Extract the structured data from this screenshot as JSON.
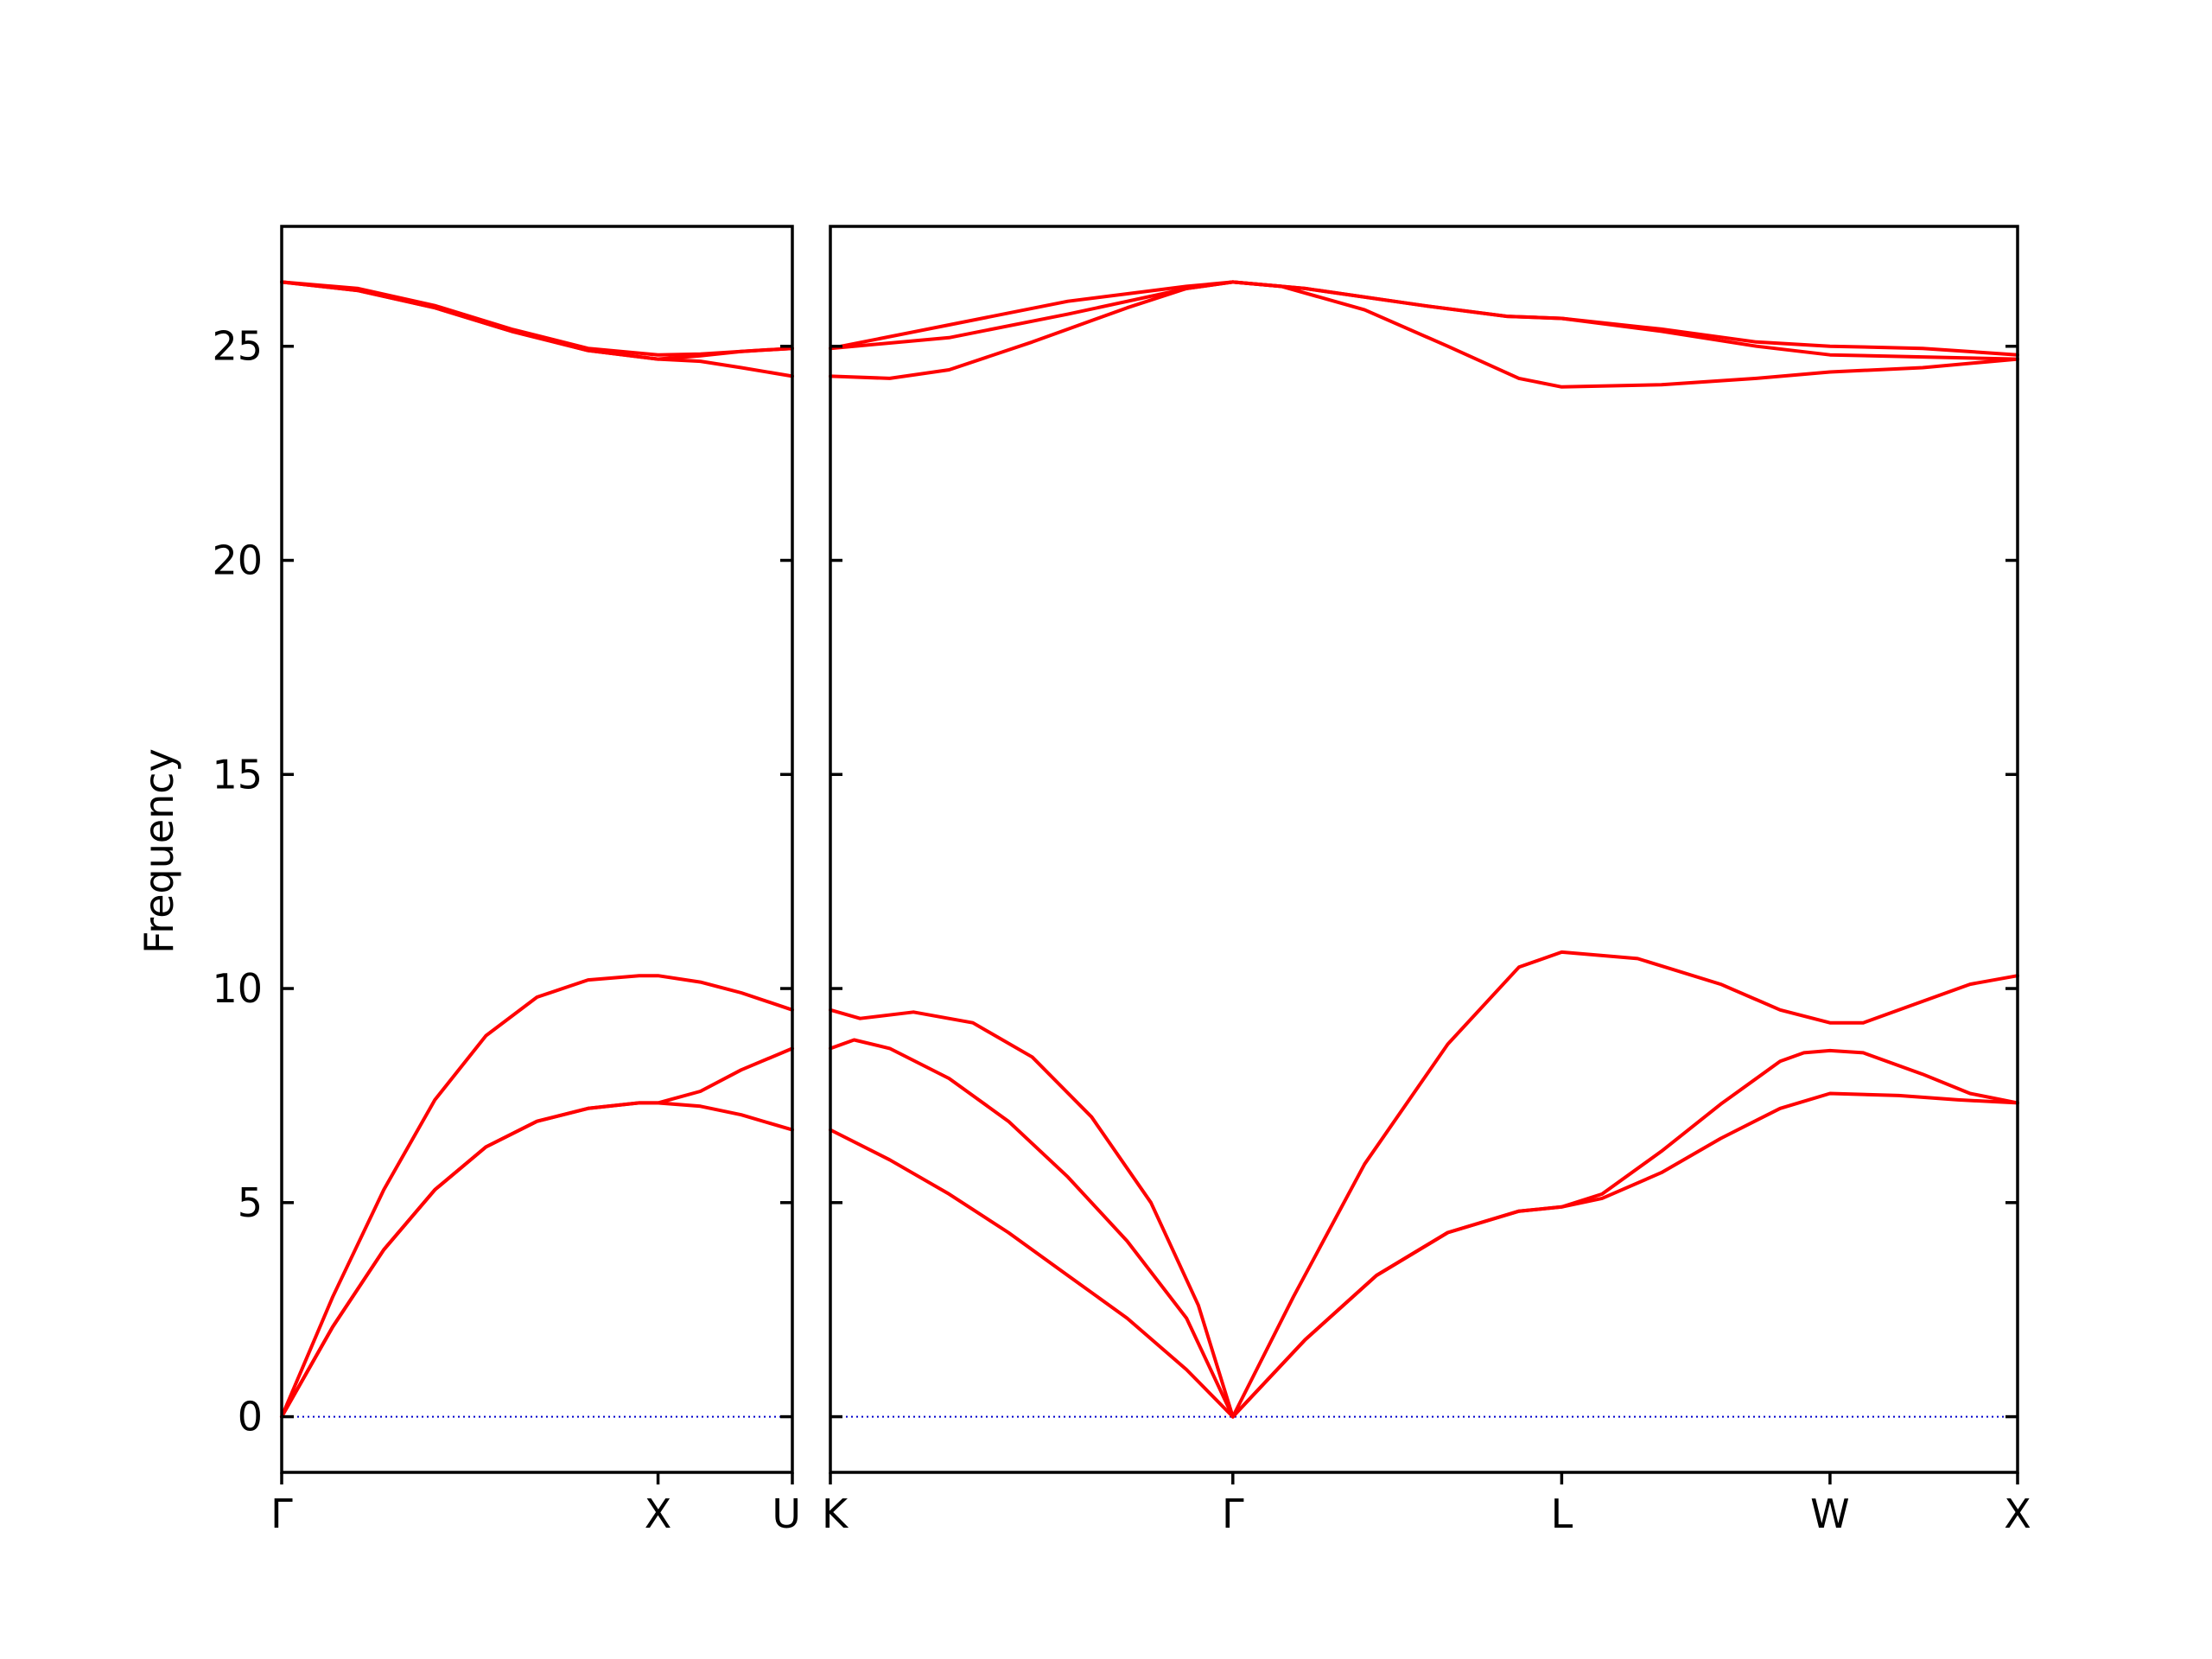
{
  "chart_data": {
    "type": "line",
    "ylabel": "Frequency",
    "ylim": [
      -1.3,
      27.8
    ],
    "yticks": [
      0,
      5,
      10,
      15,
      20,
      25
    ],
    "band_color": "#ff0000",
    "zero_line_color": "#0000cc",
    "panels": [
      {
        "xlim": [
          0,
          1
        ],
        "ticks": [
          {
            "x": 0,
            "label": "Γ"
          },
          {
            "x": 0.737,
            "label": "X"
          },
          {
            "x": 1,
            "label": "U"
          }
        ],
        "series": [
          {
            "points": [
              [
                0,
                0
              ],
              [
                0.1,
                2.8
              ],
              [
                0.2,
                5.3
              ],
              [
                0.3,
                7.4
              ],
              [
                0.4,
                8.9
              ],
              [
                0.5,
                9.8
              ],
              [
                0.6,
                10.2
              ],
              [
                0.7,
                10.3
              ],
              [
                0.737,
                10.3
              ],
              [
                0.82,
                10.15
              ],
              [
                0.9,
                9.9
              ],
              [
                1,
                9.5
              ]
            ]
          },
          {
            "points": [
              [
                0,
                0
              ],
              [
                0.1,
                2.1
              ],
              [
                0.2,
                3.9
              ],
              [
                0.3,
                5.3
              ],
              [
                0.4,
                6.3
              ],
              [
                0.5,
                6.9
              ],
              [
                0.6,
                7.2
              ],
              [
                0.7,
                7.33
              ],
              [
                0.737,
                7.33
              ],
              [
                0.82,
                7.6
              ],
              [
                0.9,
                8.1
              ],
              [
                1,
                8.6
              ]
            ]
          },
          {
            "points": [
              [
                0,
                0
              ],
              [
                0.1,
                2.1
              ],
              [
                0.2,
                3.9
              ],
              [
                0.3,
                5.3
              ],
              [
                0.4,
                6.3
              ],
              [
                0.5,
                6.9
              ],
              [
                0.6,
                7.2
              ],
              [
                0.7,
                7.33
              ],
              [
                0.737,
                7.33
              ],
              [
                0.82,
                7.25
              ],
              [
                0.9,
                7.05
              ],
              [
                1,
                6.7
              ]
            ]
          },
          {
            "points": [
              [
                0,
                26.5
              ],
              [
                0.15,
                26.35
              ],
              [
                0.3,
                25.95
              ],
              [
                0.45,
                25.4
              ],
              [
                0.6,
                24.95
              ],
              [
                0.737,
                24.8
              ],
              [
                0.82,
                24.82
              ],
              [
                0.9,
                24.88
              ],
              [
                1,
                24.95
              ]
            ]
          },
          {
            "points": [
              [
                0,
                26.5
              ],
              [
                0.15,
                26.3
              ],
              [
                0.3,
                25.9
              ],
              [
                0.45,
                25.35
              ],
              [
                0.6,
                24.9
              ],
              [
                0.737,
                24.7
              ],
              [
                0.82,
                24.65
              ],
              [
                0.9,
                24.5
              ],
              [
                1,
                24.3
              ]
            ]
          },
          {
            "points": [
              [
                0,
                26.5
              ],
              [
                0.15,
                26.3
              ],
              [
                0.3,
                25.9
              ],
              [
                0.45,
                25.35
              ],
              [
                0.6,
                24.9
              ],
              [
                0.737,
                24.7
              ],
              [
                0.82,
                24.78
              ],
              [
                0.9,
                24.88
              ],
              [
                1,
                24.95
              ]
            ]
          }
        ]
      },
      {
        "xlim": [
          0,
          1
        ],
        "ticks": [
          {
            "x": 0,
            "label": "K"
          },
          {
            "x": 0.339,
            "label": "Γ"
          },
          {
            "x": 0.616,
            "label": "L"
          },
          {
            "x": 0.842,
            "label": "W"
          },
          {
            "x": 1,
            "label": "X"
          }
        ],
        "series": [
          {
            "points": [
              [
                0,
                9.5
              ],
              [
                0.025,
                9.3
              ],
              [
                0.07,
                9.45
              ],
              [
                0.12,
                9.2
              ],
              [
                0.17,
                8.4
              ],
              [
                0.22,
                7.0
              ],
              [
                0.27,
                5.0
              ],
              [
                0.31,
                2.6
              ],
              [
                0.339,
                0
              ]
            ]
          },
          {
            "points": [
              [
                0,
                8.6
              ],
              [
                0.02,
                8.8
              ],
              [
                0.05,
                8.6
              ],
              [
                0.1,
                7.9
              ],
              [
                0.15,
                6.9
              ],
              [
                0.2,
                5.6
              ],
              [
                0.25,
                4.1
              ],
              [
                0.3,
                2.3
              ],
              [
                0.339,
                0
              ]
            ]
          },
          {
            "points": [
              [
                0,
                6.7
              ],
              [
                0.05,
                6.0
              ],
              [
                0.1,
                5.2
              ],
              [
                0.15,
                4.3
              ],
              [
                0.2,
                3.3
              ],
              [
                0.25,
                2.3
              ],
              [
                0.3,
                1.1
              ],
              [
                0.339,
                0
              ]
            ]
          },
          {
            "points": [
              [
                0.339,
                0
              ],
              [
                0.39,
                2.8
              ],
              [
                0.45,
                5.9
              ],
              [
                0.52,
                8.7
              ],
              [
                0.58,
                10.5
              ],
              [
                0.616,
                10.85
              ],
              [
                0.68,
                10.7
              ],
              [
                0.75,
                10.1
              ],
              [
                0.8,
                9.5
              ],
              [
                0.842,
                9.2
              ],
              [
                0.87,
                9.2
              ],
              [
                0.92,
                9.7
              ],
              [
                0.96,
                10.1
              ],
              [
                1,
                10.3
              ]
            ]
          },
          {
            "points": [
              [
                0.339,
                0
              ],
              [
                0.4,
                1.8
              ],
              [
                0.46,
                3.3
              ],
              [
                0.52,
                4.3
              ],
              [
                0.58,
                4.8
              ],
              [
                0.616,
                4.9
              ],
              [
                0.65,
                5.2
              ],
              [
                0.7,
                6.2
              ],
              [
                0.75,
                7.3
              ],
              [
                0.8,
                8.3
              ],
              [
                0.82,
                8.5
              ],
              [
                0.842,
                8.55
              ],
              [
                0.87,
                8.5
              ],
              [
                0.92,
                8.0
              ],
              [
                0.96,
                7.55
              ],
              [
                1,
                7.33
              ]
            ]
          },
          {
            "points": [
              [
                0.339,
                0
              ],
              [
                0.4,
                1.8
              ],
              [
                0.46,
                3.3
              ],
              [
                0.52,
                4.3
              ],
              [
                0.58,
                4.8
              ],
              [
                0.616,
                4.9
              ],
              [
                0.65,
                5.1
              ],
              [
                0.7,
                5.7
              ],
              [
                0.75,
                6.5
              ],
              [
                0.8,
                7.2
              ],
              [
                0.842,
                7.55
              ],
              [
                0.9,
                7.5
              ],
              [
                0.95,
                7.4
              ],
              [
                1,
                7.33
              ]
            ]
          },
          {
            "points": [
              [
                0,
                24.95
              ],
              [
                0.1,
                25.5
              ],
              [
                0.2,
                26.05
              ],
              [
                0.3,
                26.4
              ],
              [
                0.339,
                26.5
              ],
              [
                0.4,
                26.35
              ],
              [
                0.5,
                25.95
              ],
              [
                0.57,
                25.7
              ],
              [
                0.616,
                25.65
              ],
              [
                0.7,
                25.4
              ],
              [
                0.78,
                25.1
              ],
              [
                0.842,
                25.0
              ],
              [
                0.92,
                24.95
              ],
              [
                1,
                24.8
              ]
            ]
          },
          {
            "points": [
              [
                0,
                24.95
              ],
              [
                0.1,
                25.2
              ],
              [
                0.2,
                25.75
              ],
              [
                0.3,
                26.35
              ],
              [
                0.339,
                26.5
              ],
              [
                0.4,
                26.35
              ],
              [
                0.5,
                25.95
              ],
              [
                0.57,
                25.7
              ],
              [
                0.616,
                25.65
              ],
              [
                0.7,
                25.35
              ],
              [
                0.78,
                25.0
              ],
              [
                0.842,
                24.8
              ],
              [
                0.92,
                24.75
              ],
              [
                1,
                24.7
              ]
            ]
          },
          {
            "points": [
              [
                0,
                24.3
              ],
              [
                0.05,
                24.25
              ],
              [
                0.1,
                24.45
              ],
              [
                0.17,
                25.1
              ],
              [
                0.25,
                25.9
              ],
              [
                0.3,
                26.35
              ],
              [
                0.339,
                26.5
              ],
              [
                0.38,
                26.4
              ],
              [
                0.45,
                25.85
              ],
              [
                0.52,
                25.0
              ],
              [
                0.58,
                24.25
              ],
              [
                0.616,
                24.05
              ],
              [
                0.7,
                24.1
              ],
              [
                0.78,
                24.25
              ],
              [
                0.842,
                24.4
              ],
              [
                0.92,
                24.5
              ],
              [
                1,
                24.7
              ]
            ]
          }
        ]
      }
    ]
  }
}
